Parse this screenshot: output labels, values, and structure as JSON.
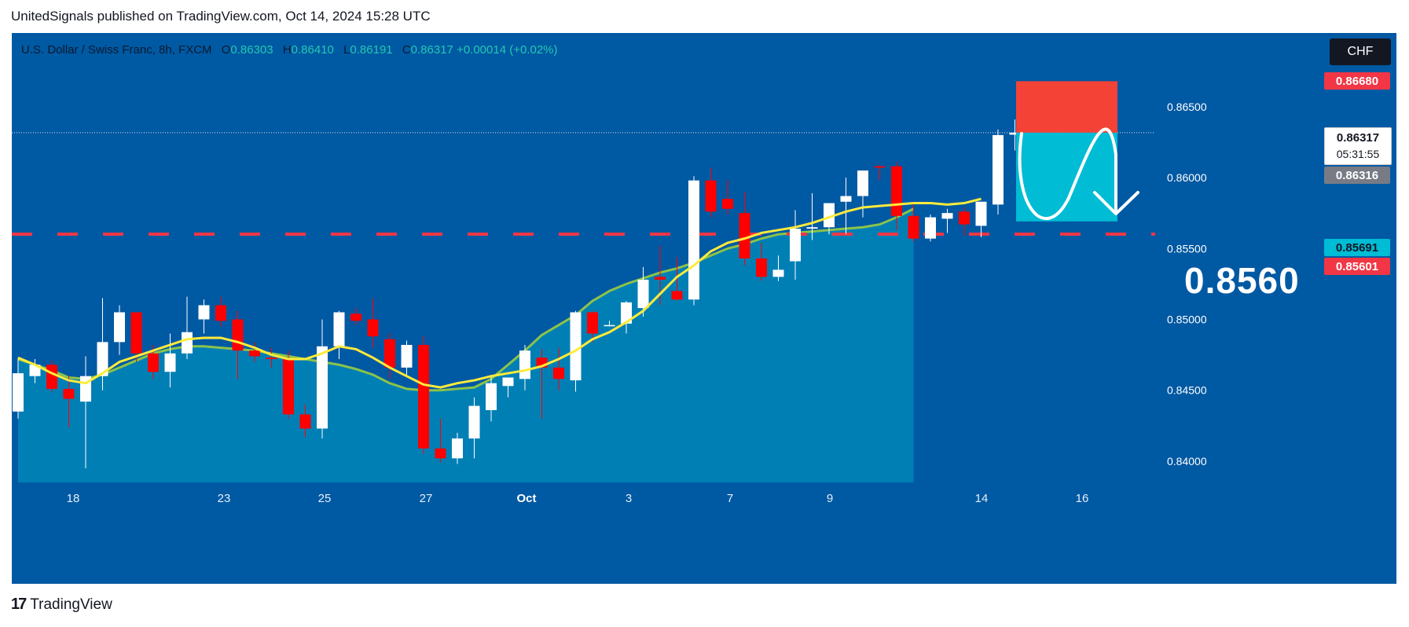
{
  "header": {
    "text": "UnitedSignals published on TradingView.com, Oct 14, 2024 15:28 UTC"
  },
  "symbol": {
    "title": "U.S. Dollar / Swiss Franc, 8h, FXCM",
    "o_label": "O",
    "o": "0.86303",
    "h_label": "H",
    "h": "0.86410",
    "l_label": "L",
    "l": "0.86191",
    "c_label": "C",
    "c": "0.86317",
    "change": "+0.00014 (+0.02%)"
  },
  "currency": "CHF",
  "price_tags": {
    "tp": "0.86680",
    "last": "0.86317",
    "countdown": "05:31:55",
    "prev": "0.86316",
    "sl": "0.85691",
    "level": "0.85601"
  },
  "target_label": "0.8560",
  "footer": {
    "brand": "TradingView",
    "logo_glyph": "17"
  },
  "colors": {
    "background": "#0059A3",
    "bull": "#ffffff",
    "bear": "#FF0000",
    "ema_fast": "#FFEB3B",
    "ema_slow": "#8BC34A",
    "level": "#F23645",
    "target_zone": "#F44336",
    "stop_zone": "#00BCD4"
  },
  "chart_data": {
    "type": "candlestick",
    "timeframe": "8h",
    "ylim": [
      0.8385,
      0.8702
    ],
    "y_ticks": [
      "0.86500",
      "0.86000",
      "0.85500",
      "0.85000",
      "0.84500",
      "0.84000"
    ],
    "x_ticks": [
      "18",
      "23",
      "25",
      "27",
      "Oct",
      "3",
      "7",
      "9",
      "14",
      "16"
    ],
    "candles": [
      {
        "o": 0.8435,
        "h": 0.8473,
        "l": 0.843,
        "c": 0.8462
      },
      {
        "o": 0.846,
        "h": 0.8472,
        "l": 0.8455,
        "c": 0.8468
      },
      {
        "o": 0.8468,
        "h": 0.8471,
        "l": 0.8449,
        "c": 0.8451
      },
      {
        "o": 0.8451,
        "h": 0.846,
        "l": 0.8424,
        "c": 0.8444
      },
      {
        "o": 0.8442,
        "h": 0.8474,
        "l": 0.8395,
        "c": 0.846
      },
      {
        "o": 0.846,
        "h": 0.8515,
        "l": 0.845,
        "c": 0.8484
      },
      {
        "o": 0.8484,
        "h": 0.851,
        "l": 0.8475,
        "c": 0.8505
      },
      {
        "o": 0.8505,
        "h": 0.8505,
        "l": 0.847,
        "c": 0.8476
      },
      {
        "o": 0.8476,
        "h": 0.8482,
        "l": 0.8458,
        "c": 0.8463
      },
      {
        "o": 0.8463,
        "h": 0.849,
        "l": 0.8452,
        "c": 0.8476
      },
      {
        "o": 0.8476,
        "h": 0.8516,
        "l": 0.8472,
        "c": 0.8491
      },
      {
        "o": 0.85,
        "h": 0.8514,
        "l": 0.849,
        "c": 0.851
      },
      {
        "o": 0.851,
        "h": 0.8516,
        "l": 0.8495,
        "c": 0.8499
      },
      {
        "o": 0.85,
        "h": 0.8506,
        "l": 0.8458,
        "c": 0.8478
      },
      {
        "o": 0.8478,
        "h": 0.8484,
        "l": 0.847,
        "c": 0.8474
      },
      {
        "o": 0.8473,
        "h": 0.848,
        "l": 0.8466,
        "c": 0.8472
      },
      {
        "o": 0.8472,
        "h": 0.8478,
        "l": 0.843,
        "c": 0.8433
      },
      {
        "o": 0.8433,
        "h": 0.844,
        "l": 0.8417,
        "c": 0.8423
      },
      {
        "o": 0.8423,
        "h": 0.85,
        "l": 0.8416,
        "c": 0.8481
      },
      {
        "o": 0.8481,
        "h": 0.8506,
        "l": 0.8472,
        "c": 0.8505
      },
      {
        "o": 0.8504,
        "h": 0.8508,
        "l": 0.8496,
        "c": 0.8499
      },
      {
        "o": 0.85,
        "h": 0.8515,
        "l": 0.848,
        "c": 0.8488
      },
      {
        "o": 0.8486,
        "h": 0.849,
        "l": 0.8458,
        "c": 0.8466
      },
      {
        "o": 0.8466,
        "h": 0.8485,
        "l": 0.846,
        "c": 0.8482
      },
      {
        "o": 0.8482,
        "h": 0.8488,
        "l": 0.8405,
        "c": 0.8409
      },
      {
        "o": 0.8409,
        "h": 0.843,
        "l": 0.8399,
        "c": 0.8402
      },
      {
        "o": 0.8402,
        "h": 0.842,
        "l": 0.8398,
        "c": 0.8416
      },
      {
        "o": 0.8416,
        "h": 0.8445,
        "l": 0.8402,
        "c": 0.8439
      },
      {
        "o": 0.8436,
        "h": 0.846,
        "l": 0.8428,
        "c": 0.8455
      },
      {
        "o": 0.8453,
        "h": 0.8459,
        "l": 0.8445,
        "c": 0.8459
      },
      {
        "o": 0.8458,
        "h": 0.8482,
        "l": 0.845,
        "c": 0.8478
      },
      {
        "o": 0.8473,
        "h": 0.8479,
        "l": 0.843,
        "c": 0.8466
      },
      {
        "o": 0.8466,
        "h": 0.848,
        "l": 0.845,
        "c": 0.8458
      },
      {
        "o": 0.8457,
        "h": 0.8506,
        "l": 0.8449,
        "c": 0.8505
      },
      {
        "o": 0.8505,
        "h": 0.8506,
        "l": 0.8484,
        "c": 0.849
      },
      {
        "o": 0.8496,
        "h": 0.8499,
        "l": 0.8495,
        "c": 0.8496
      },
      {
        "o": 0.8497,
        "h": 0.8513,
        "l": 0.849,
        "c": 0.8512
      },
      {
        "o": 0.8508,
        "h": 0.8537,
        "l": 0.8502,
        "c": 0.8528
      },
      {
        "o": 0.853,
        "h": 0.8552,
        "l": 0.851,
        "c": 0.8528
      },
      {
        "o": 0.852,
        "h": 0.8544,
        "l": 0.8513,
        "c": 0.8514
      },
      {
        "o": 0.8514,
        "h": 0.8601,
        "l": 0.851,
        "c": 0.8598
      },
      {
        "o": 0.8598,
        "h": 0.8607,
        "l": 0.8572,
        "c": 0.8576
      },
      {
        "o": 0.8585,
        "h": 0.8598,
        "l": 0.8574,
        "c": 0.8578
      },
      {
        "o": 0.8575,
        "h": 0.859,
        "l": 0.8538,
        "c": 0.8543
      },
      {
        "o": 0.8543,
        "h": 0.8554,
        "l": 0.8527,
        "c": 0.853
      },
      {
        "o": 0.853,
        "h": 0.8545,
        "l": 0.8527,
        "c": 0.8535
      },
      {
        "o": 0.8541,
        "h": 0.8577,
        "l": 0.8528,
        "c": 0.8564
      },
      {
        "o": 0.8564,
        "h": 0.8589,
        "l": 0.8556,
        "c": 0.8565
      },
      {
        "o": 0.8565,
        "h": 0.8582,
        "l": 0.856,
        "c": 0.8582
      },
      {
        "o": 0.8583,
        "h": 0.86,
        "l": 0.856,
        "c": 0.8587
      },
      {
        "o": 0.8587,
        "h": 0.8604,
        "l": 0.8572,
        "c": 0.8605
      },
      {
        "o": 0.8608,
        "h": 0.8609,
        "l": 0.8598,
        "c": 0.8607
      },
      {
        "o": 0.8608,
        "h": 0.8611,
        "l": 0.8563,
        "c": 0.8573
      },
      {
        "o": 0.8573,
        "h": 0.8583,
        "l": 0.8555,
        "c": 0.8557
      },
      {
        "o": 0.8557,
        "h": 0.8574,
        "l": 0.8555,
        "c": 0.8572
      },
      {
        "o": 0.8571,
        "h": 0.8578,
        "l": 0.8561,
        "c": 0.8575
      },
      {
        "o": 0.8576,
        "h": 0.8579,
        "l": 0.8559,
        "c": 0.8567
      },
      {
        "o": 0.8566,
        "h": 0.8583,
        "l": 0.8558,
        "c": 0.8583
      },
      {
        "o": 0.8581,
        "h": 0.8634,
        "l": 0.8574,
        "c": 0.863
      },
      {
        "o": 0.86303,
        "h": 0.8641,
        "l": 0.86191,
        "c": 0.86317
      }
    ],
    "ema_fast": [
      0.8473,
      0.8468,
      0.8462,
      0.8457,
      0.8455,
      0.8462,
      0.847,
      0.8474,
      0.8478,
      0.8482,
      0.8486,
      0.8487,
      0.8487,
      0.8484,
      0.848,
      0.8475,
      0.8472,
      0.8472,
      0.8476,
      0.8481,
      0.8479,
      0.8473,
      0.8466,
      0.846,
      0.8454,
      0.8452,
      0.8455,
      0.8457,
      0.846,
      0.8462,
      0.8464,
      0.8467,
      0.8472,
      0.8478,
      0.8486,
      0.8491,
      0.8498,
      0.8506,
      0.8518,
      0.853,
      0.8538,
      0.8548,
      0.8554,
      0.8557,
      0.8561,
      0.8563,
      0.8565,
      0.8568,
      0.8572,
      0.8576,
      0.8579,
      0.858,
      0.8581,
      0.8582,
      0.8582,
      0.8581,
      0.8582,
      0.8585
    ],
    "ema_slow": [
      0.8472,
      0.8468,
      0.8464,
      0.8459,
      0.8458,
      0.8461,
      0.8466,
      0.8471,
      0.8476,
      0.8479,
      0.8481,
      0.8481,
      0.848,
      0.8479,
      0.8478,
      0.8476,
      0.8474,
      0.8472,
      0.847,
      0.8468,
      0.8465,
      0.8461,
      0.8455,
      0.8451,
      0.845,
      0.845,
      0.8451,
      0.8452,
      0.8458,
      0.8468,
      0.8478,
      0.8489,
      0.8496,
      0.8503,
      0.8513,
      0.852,
      0.8525,
      0.8529,
      0.8533,
      0.8536,
      0.854,
      0.8545,
      0.855,
      0.8553,
      0.8557,
      0.856,
      0.8561,
      0.8562,
      0.8563,
      0.8564,
      0.8565,
      0.8567,
      0.8572,
      0.8578
    ],
    "level_line": 0.85601,
    "position": {
      "target": 0.8668,
      "entry": 0.86317,
      "stop": 0.85691
    }
  }
}
